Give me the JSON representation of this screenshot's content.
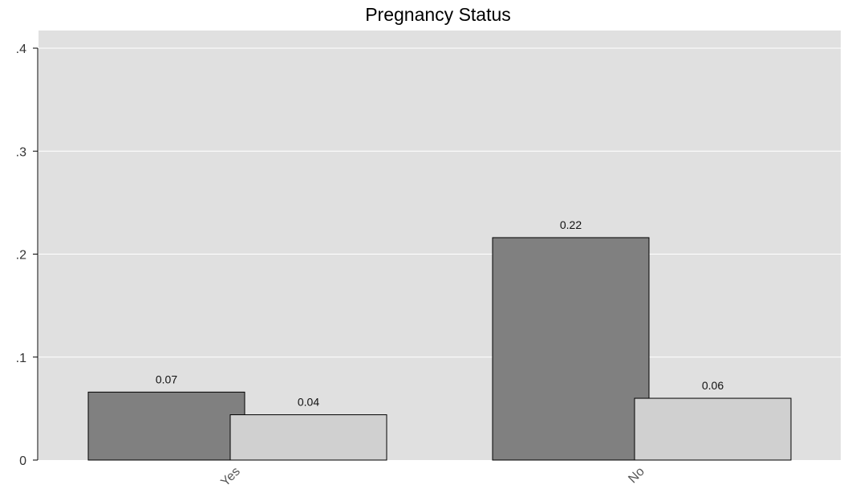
{
  "chart_data": {
    "type": "bar",
    "title": "Pregnancy Status",
    "categories": [
      "Yes",
      "No"
    ],
    "series": [
      {
        "values": [
          0.066,
          0.216
        ],
        "labels": [
          "0.07",
          "0.22"
        ],
        "color": "#808080"
      },
      {
        "values": [
          0.044,
          0.06
        ],
        "labels": [
          "0.04",
          "0.06"
        ],
        "color": "#d0d0d0"
      }
    ],
    "ylim": [
      0,
      0.4
    ],
    "yticks": [
      0,
      0.1,
      0.2,
      0.3,
      0.4
    ],
    "ytick_labels": [
      "0",
      ".1",
      ".2",
      ".3",
      ".4"
    ],
    "xlabel": "",
    "ylabel": "",
    "grid": true,
    "plot_background": "#e0e0e0",
    "bar_outline": "#000000"
  }
}
